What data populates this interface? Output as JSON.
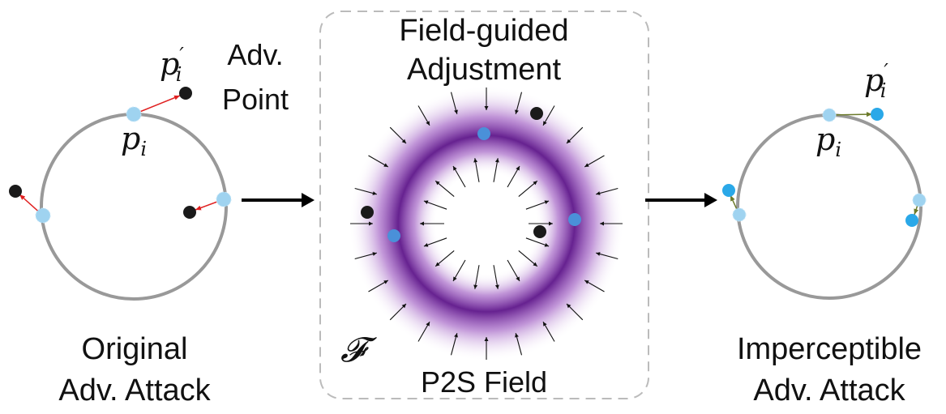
{
  "left_panel": {
    "caption_line1": "Original",
    "caption_line2": "Adv. Attack",
    "callout_line1": "Adv.",
    "callout_line2": "Point",
    "point_label": "p",
    "point_subscript": "i",
    "adv_label": "p",
    "adv_subscript": "i",
    "adv_prime": "′"
  },
  "middle_panel": {
    "title_line1": "Field-guided",
    "title_line2": "Adjustment",
    "field_symbol": "𝓕",
    "caption": "P2S Field"
  },
  "right_panel": {
    "caption_line1": "Imperceptible",
    "caption_line2": "Adv. Attack",
    "point_label": "p",
    "point_subscript": "i",
    "adv_label": "p",
    "adv_subscript": "i",
    "adv_prime": "′"
  },
  "colors": {
    "circle": "#999999",
    "original_point": "#9fd3f0",
    "adversarial_point": "#1a1a1a",
    "attack_arrow": "#e02020",
    "corrected_point": "#2aa8e8",
    "correction_arrow": "#6b7a2a",
    "field": "#6a1b9a",
    "field_arrow": "#111111",
    "dashed_box": "#bbbbbb"
  },
  "icons": {
    "flow_arrow": "right-arrow-icon"
  }
}
